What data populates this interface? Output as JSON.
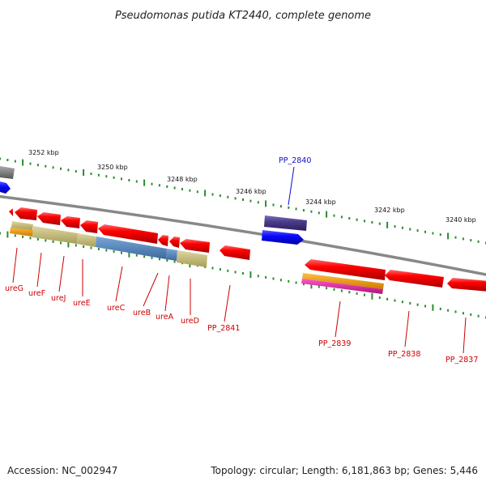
{
  "title": "Pseudomonas putida KT2440, complete genome",
  "footer": {
    "accession": "Accession: NC_002947",
    "topology": "Topology: circular; Length: 6,181,863 bp; Genes: 5,446"
  },
  "colors": {
    "forward_gene": "#e00000",
    "reverse_gene": "#e00000",
    "cds_khaki": "#c2b973",
    "cds_steelblue": "#4a7fb5",
    "cds_orange": "#f09000",
    "cds_magenta": "#e01aa0",
    "highlight_gene": "#1010f0",
    "highlight_cds": "#4b3b8a",
    "backbone": "#888888",
    "tick": "#2e8b2e",
    "label_red": "#cc0000",
    "label_blue": "#1010cc"
  },
  "scale_labels": [
    "3252 kbp",
    "3250 kbp",
    "3248 kbp",
    "3246 kbp",
    "3244 kbp",
    "3242 kbp",
    "3240 kbp"
  ],
  "gene_labels": [
    {
      "text": "ureG",
      "color": "red"
    },
    {
      "text": "ureF",
      "color": "red"
    },
    {
      "text": "ureJ",
      "color": "red"
    },
    {
      "text": "ureE",
      "color": "red"
    },
    {
      "text": "ureC",
      "color": "red"
    },
    {
      "text": "ureB",
      "color": "red"
    },
    {
      "text": "ureA",
      "color": "red"
    },
    {
      "text": "ureD",
      "color": "red"
    },
    {
      "text": "PP_2841",
      "color": "red"
    },
    {
      "text": "PP_2840",
      "color": "blue"
    },
    {
      "text": "PP_2839",
      "color": "red"
    },
    {
      "text": "PP_2838",
      "color": "red"
    },
    {
      "text": "PP_2837",
      "color": "red"
    }
  ]
}
